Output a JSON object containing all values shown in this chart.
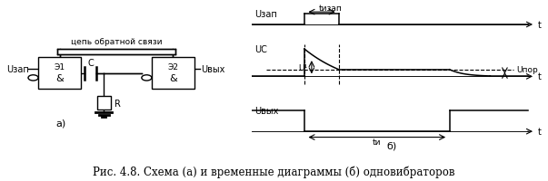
{
  "fig_width": 6.03,
  "fig_height": 2.01,
  "dpi": 100,
  "bg_color": "#ffffff",
  "caption": "Рис. 4.8. Схема (а) и временные диаграммы (б) одновибраторов",
  "caption_fontsize": 8.5,
  "circuit": {
    "feedback_label": "цепь обратной связи",
    "elem1_label": "Э1",
    "elem2_label": "Э2",
    "and1_label": "&",
    "and2_label": "&",
    "C_label": "C",
    "R_label": "R",
    "Uzap_label": "Uзап",
    "Uvyx_label": "Uвых",
    "subfig_label": "а)"
  },
  "timing": {
    "subfig_label": "б)",
    "Uzap_label": "Uзап",
    "Uc_label": "UС",
    "Uvyx_label": "Uвых",
    "t_label": "t",
    "tizap_label": "tизап",
    "tu_label": "tи",
    "Upor_label": "Uпор",
    "U1_label": "U¹"
  }
}
